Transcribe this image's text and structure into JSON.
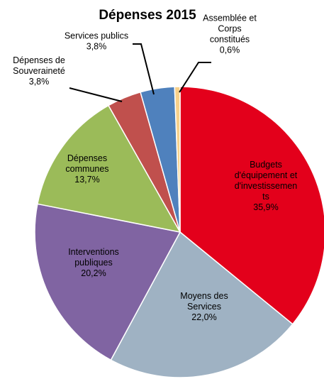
{
  "chart_data": {
    "type": "pie",
    "title": "Dépenses 2015",
    "slices": [
      {
        "label_lines": [
          "Budgets",
          "d'équipement et",
          "d'investissemen",
          "ts",
          "35,9%"
        ],
        "value": 35.9,
        "color": "#e3001b"
      },
      {
        "label_lines": [
          "Moyens des",
          "Services",
          "22,0%"
        ],
        "value": 22.0,
        "color": "#9fb2c3"
      },
      {
        "label_lines": [
          "Interventions",
          "publiques",
          "20,2%"
        ],
        "value": 20.2,
        "color": "#8064a2"
      },
      {
        "label_lines": [
          "Dépenses",
          "communes",
          "13,7%"
        ],
        "value": 13.7,
        "color": "#9bbb59"
      },
      {
        "label_lines": [
          "Dépenses de",
          "Souveraineté",
          "3,8%"
        ],
        "value": 3.8,
        "color": "#c0504d"
      },
      {
        "label_lines": [
          "Services publics",
          "3,8%"
        ],
        "value": 3.8,
        "color": "#4f81bd"
      },
      {
        "label_lines": [
          "Assemblée et",
          "Corps",
          "constitués",
          "0,6%"
        ],
        "value": 0.6,
        "color": "#f7d08a"
      }
    ]
  }
}
